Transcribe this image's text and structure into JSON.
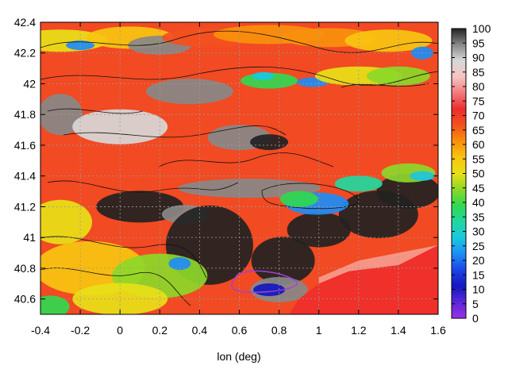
{
  "chart_data": {
    "type": "heatmap",
    "title": "",
    "xlabel": "lon (deg)",
    "ylabel": "",
    "xlim": [
      -0.4,
      1.6
    ],
    "ylim": [
      40.5,
      42.4
    ],
    "x_ticks": [
      "-0.4",
      "-0.2",
      "0",
      "0.2",
      "0.4",
      "0.6",
      "0.8",
      "1",
      "1.2",
      "1.4",
      "1.6"
    ],
    "y_ticks": [
      "40.6",
      "40.8",
      "41",
      "41.2",
      "41.4",
      "41.6",
      "41.8",
      "42",
      "42.2",
      "42.4"
    ],
    "colorbar": {
      "min": 0,
      "max": 100,
      "ticks": [
        "0",
        "5",
        "10",
        "15",
        "20",
        "25",
        "30",
        "35",
        "40",
        "45",
        "50",
        "55",
        "60",
        "65",
        "70",
        "75",
        "80",
        "85",
        "90",
        "95",
        "100"
      ]
    },
    "grid": true,
    "contours": true,
    "colors": {
      "sea": "#f0302a",
      "field_base": "#f24a22",
      "colormap": [
        "#9b30e8",
        "#5a28d8",
        "#1418c0",
        "#1c44e6",
        "#1e8cf6",
        "#18c8e0",
        "#20d8a0",
        "#30d850",
        "#8cd828",
        "#e8e018",
        "#f8c410",
        "#f8900c",
        "#f45020",
        "#ee2c2c",
        "#f47a7a",
        "#f6c4c4",
        "#d8d8d8",
        "#888888",
        "#222222"
      ]
    }
  }
}
